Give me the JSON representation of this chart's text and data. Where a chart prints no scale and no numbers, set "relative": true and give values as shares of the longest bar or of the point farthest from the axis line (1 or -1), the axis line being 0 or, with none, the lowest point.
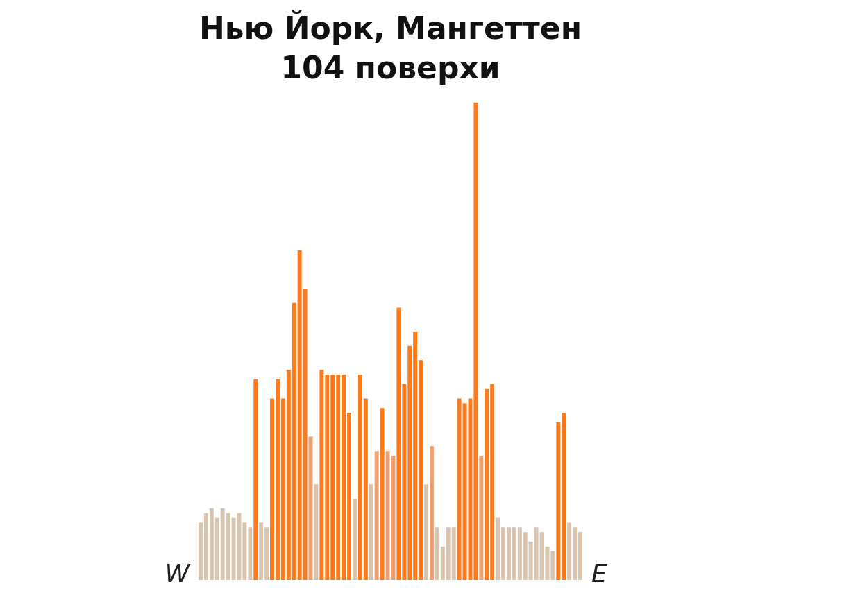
{
  "chart_data": {
    "type": "bar",
    "title": "Нью Йорк, Мангеттен",
    "subtitle": "104 поверхи",
    "relative": true,
    "categories": [
      null,
      null,
      null,
      null,
      null,
      null,
      null,
      null,
      null,
      null,
      null,
      null,
      null,
      null,
      null,
      null,
      null,
      null,
      null,
      null,
      null,
      null,
      null,
      null,
      null,
      null,
      null,
      null,
      null,
      null,
      null,
      null,
      null,
      null,
      null,
      null,
      null,
      null,
      null,
      null,
      null,
      null,
      null,
      null,
      null,
      null,
      null,
      null,
      null,
      null,
      null,
      null,
      null,
      null,
      null,
      null,
      null,
      null,
      null,
      null,
      null,
      null,
      null,
      null,
      null,
      null,
      null,
      null,
      null,
      null
    ],
    "values": [
      0.12,
      0.14,
      0.15,
      0.13,
      0.15,
      0.14,
      0.13,
      0.14,
      0.12,
      0.11,
      0.42,
      0.12,
      0.11,
      0.38,
      0.42,
      0.38,
      0.44,
      0.58,
      0.69,
      0.61,
      0.3,
      0.2,
      0.44,
      0.43,
      0.43,
      0.43,
      0.43,
      0.35,
      0.17,
      0.43,
      0.38,
      0.2,
      0.27,
      0.36,
      0.27,
      0.26,
      0.57,
      0.41,
      0.49,
      0.52,
      0.46,
      0.2,
      0.28,
      0.11,
      0.07,
      0.11,
      0.11,
      0.38,
      0.37,
      0.38,
      1,
      0.26,
      0.4,
      0.41,
      0.13,
      0.11,
      0.11,
      0.11,
      0.11,
      0.1,
      0.08,
      0.11,
      0.1,
      0.07,
      0.06,
      0.33,
      0.35,
      0.12,
      0.11,
      0.1
    ],
    "colors": [
      "#d9c4b0",
      "#d9c4b0",
      "#d9c4b0",
      "#d9c4b0",
      "#d9c4b0",
      "#d9c4b0",
      "#d9c4b0",
      "#d9c4b0",
      "#d9c4b0",
      "#d9c4b0",
      "#ff7a1a",
      "#d9c4b0",
      "#d9c4b0",
      "#ff7a1a",
      "#ff7a1a",
      "#ff7a1a",
      "#ff7a1a",
      "#ff7a1a",
      "#ff7a1a",
      "#ff7a1a",
      "#f0a070",
      "#d9c4b0",
      "#ff7a1a",
      "#ff7a1a",
      "#ff7a1a",
      "#ff7a1a",
      "#ff7a1a",
      "#ff7a1a",
      "#d9c4b0",
      "#ff7a1a",
      "#ff7a1a",
      "#d9c4b0",
      "#f0a070",
      "#ff7a1a",
      "#f0a070",
      "#f0a070",
      "#ff7a1a",
      "#ff7a1a",
      "#ff7a1a",
      "#ff7a1a",
      "#ff7a1a",
      "#d9c4b0",
      "#f0a070",
      "#d9c4b0",
      "#d9c4b0",
      "#d9c4b0",
      "#d9c4b0",
      "#ff7a1a",
      "#ff7a1a",
      "#ff7a1a",
      "#ff7a1a",
      "#f0a070",
      "#ff7a1a",
      "#ff7a1a",
      "#d9c4b0",
      "#d9c4b0",
      "#d9c4b0",
      "#d9c4b0",
      "#d9c4b0",
      "#d9c4b0",
      "#d9c4b0",
      "#d9c4b0",
      "#d9c4b0",
      "#d9c4b0",
      "#d9c4b0",
      "#ff7a1a",
      "#ff7a1a",
      "#d9c4b0",
      "#d9c4b0",
      "#d9c4b0"
    ],
    "annotations": [
      "W",
      "E"
    ]
  }
}
